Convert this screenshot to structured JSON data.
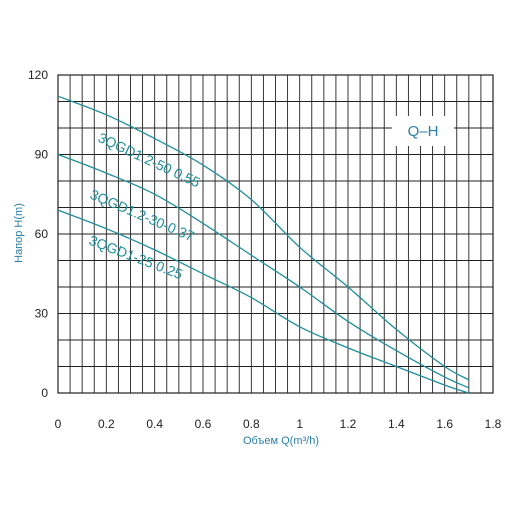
{
  "chart_data": {
    "type": "line",
    "title": "",
    "xlabel": "Объем Q(m³/h)",
    "ylabel": "Напор H(m)",
    "xlim": [
      0,
      1.8
    ],
    "ylim": [
      0,
      120
    ],
    "x_ticks": [
      0,
      0.2,
      0.4,
      0.6,
      0.8,
      1,
      1.2,
      1.4,
      1.6,
      1.8
    ],
    "x_tick_labels": [
      "0",
      "0.2",
      "0.4",
      "0.6",
      "0.8",
      "1",
      "1.2",
      "1.4",
      "1.6",
      "1.8"
    ],
    "y_ticks": [
      0,
      30,
      60,
      90,
      120
    ],
    "y_tick_labels": [
      "0",
      "30",
      "60",
      "90",
      "120"
    ],
    "grid": true,
    "legend": "Q–H",
    "series": [
      {
        "name": "3QGD1.2-50 0.55",
        "x": [
          0,
          0.2,
          0.4,
          0.6,
          0.8,
          1.0,
          1.2,
          1.4,
          1.6,
          1.7
        ],
        "y": [
          112,
          105,
          96,
          86,
          73,
          55,
          40,
          24,
          10,
          5
        ]
      },
      {
        "name": "3QGD1.2-30-0.37",
        "x": [
          0,
          0.2,
          0.4,
          0.6,
          0.8,
          1.0,
          1.2,
          1.4,
          1.6,
          1.7
        ],
        "y": [
          90,
          83,
          75,
          64,
          52,
          40,
          27,
          16,
          6,
          2
        ]
      },
      {
        "name": "3QGD1-25 0.25",
        "x": [
          0,
          0.2,
          0.4,
          0.6,
          0.8,
          1.0,
          1.2,
          1.4,
          1.6,
          1.7
        ],
        "y": [
          69,
          62,
          54,
          45,
          36,
          25,
          17,
          10,
          3,
          0
        ]
      }
    ],
    "colors": {
      "curve": "#1f8f9a",
      "label": "#2a7fa8",
      "grid": "#222222",
      "background": "#ffffff"
    }
  }
}
